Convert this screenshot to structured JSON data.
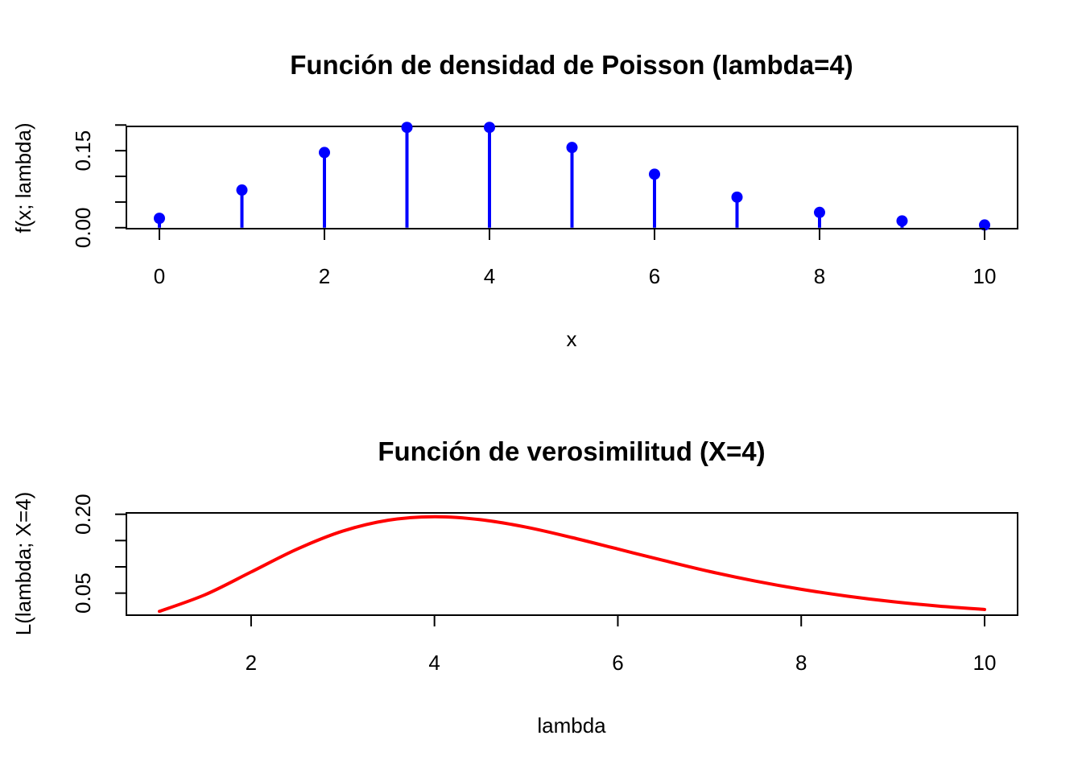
{
  "chart_data": [
    {
      "type": "stem",
      "title": "Función de densidad de Poisson (lambda=4)",
      "xlabel": "x",
      "ylabel": "f(x; lambda)",
      "x": [
        0,
        1,
        2,
        3,
        4,
        5,
        6,
        7,
        8,
        9,
        10
      ],
      "y": [
        0.0183,
        0.0733,
        0.1465,
        0.1954,
        0.1954,
        0.1563,
        0.1042,
        0.0595,
        0.0298,
        0.0132,
        0.0053
      ],
      "xticks": [
        0,
        2,
        4,
        6,
        8,
        10
      ],
      "xtick_labels": [
        "0",
        "2",
        "4",
        "6",
        "8",
        "10"
      ],
      "yticks": [
        0,
        0.05,
        0.1,
        0.15,
        0.2
      ],
      "ytick_labels": [
        {
          "value": 0.0,
          "label": "0.00"
        },
        {
          "value": 0.15,
          "label": "0.15"
        }
      ],
      "xlim": [
        -0.4,
        10.4
      ],
      "ylim": [
        -0.0019,
        0.1973
      ],
      "color": "#0000ff",
      "grid": false
    },
    {
      "type": "line",
      "title": "Función de verosimilitud (X=4)",
      "xlabel": "lambda",
      "ylabel": "L(lambda; X=4)",
      "x": [
        1,
        1.5,
        2,
        2.5,
        3,
        3.5,
        4,
        4.5,
        5,
        5.5,
        6,
        6.5,
        7,
        7.5,
        8,
        8.5,
        9,
        9.5,
        10
      ],
      "y": [
        0.0153,
        0.0471,
        0.0902,
        0.1336,
        0.168,
        0.1888,
        0.1954,
        0.1898,
        0.1755,
        0.1557,
        0.1339,
        0.1121,
        0.0912,
        0.0729,
        0.0573,
        0.0443,
        0.0337,
        0.0254,
        0.0189
      ],
      "xticks": [
        2,
        4,
        6,
        8,
        10
      ],
      "xtick_labels": [
        "2",
        "4",
        "6",
        "8",
        "10"
      ],
      "yticks": [
        0.05,
        0.1,
        0.15,
        0.2
      ],
      "ytick_labels": [
        {
          "value": 0.05,
          "label": "0.05"
        },
        {
          "value": 0.2,
          "label": "0.20"
        }
      ],
      "xlim": [
        0.64,
        10.36
      ],
      "ylim": [
        0.0081,
        0.2026
      ],
      "color": "#ff0000",
      "grid": false
    }
  ]
}
